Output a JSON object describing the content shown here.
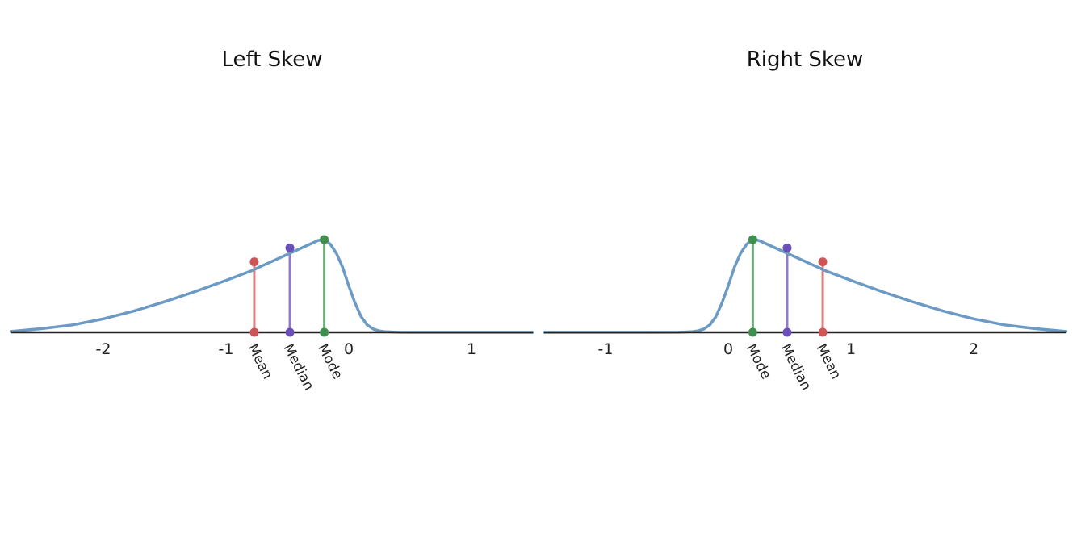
{
  "chart_data": [
    {
      "type": "line",
      "title": "Left Skew",
      "xlabel": "",
      "ylabel": "",
      "xlim": [
        -2.75,
        1.5
      ],
      "ylim": [
        0,
        1
      ],
      "grid": false,
      "x_ticks": [
        -2,
        -1,
        0,
        1
      ],
      "x_tick_labels": [
        "-2",
        "-1",
        "0",
        "1"
      ],
      "curve": {
        "x": [
          -2.75,
          -2.5,
          -2.25,
          -2.0,
          -1.75,
          -1.5,
          -1.25,
          -1.0,
          -0.9,
          -0.8,
          -0.7,
          -0.6,
          -0.5,
          -0.4,
          -0.3,
          -0.25,
          -0.2,
          -0.15,
          -0.1,
          -0.05,
          0.0,
          0.05,
          0.1,
          0.15,
          0.2,
          0.25,
          0.3,
          0.4,
          0.6,
          0.8,
          1.0,
          1.25,
          1.5
        ],
        "y": [
          0.01,
          0.04,
          0.08,
          0.145,
          0.23,
          0.33,
          0.44,
          0.56,
          0.61,
          0.66,
          0.72,
          0.78,
          0.84,
          0.9,
          0.96,
          0.99,
          1.0,
          0.95,
          0.85,
          0.7,
          0.5,
          0.32,
          0.17,
          0.08,
          0.035,
          0.015,
          0.006,
          0.001,
          0,
          0,
          0,
          0,
          0
        ]
      },
      "markers": [
        {
          "label": "Mean",
          "x": -0.77,
          "y": 0.76,
          "color": "#cc5555"
        },
        {
          "label": "Median",
          "x": -0.48,
          "y": 0.91,
          "color": "#6a4fb8"
        },
        {
          "label": "Mode",
          "x": -0.2,
          "y": 1.0,
          "color": "#3f8f4f"
        }
      ]
    },
    {
      "type": "line",
      "title": "Right Skew",
      "xlabel": "",
      "ylabel": "",
      "xlim": [
        -1.5,
        2.75
      ],
      "ylim": [
        0,
        1
      ],
      "grid": false,
      "x_ticks": [
        -1,
        0,
        1,
        2
      ],
      "x_tick_labels": [
        "-1",
        "0",
        "1",
        "2"
      ],
      "curve": {
        "x": [
          -1.5,
          -1.25,
          -1.0,
          -0.8,
          -0.6,
          -0.4,
          -0.3,
          -0.25,
          -0.2,
          -0.15,
          -0.1,
          -0.05,
          0.0,
          0.05,
          0.1,
          0.15,
          0.2,
          0.25,
          0.3,
          0.4,
          0.5,
          0.6,
          0.7,
          0.8,
          0.9,
          1.0,
          1.25,
          1.5,
          1.75,
          2.0,
          2.25,
          2.5,
          2.75
        ],
        "y": [
          0,
          0,
          0,
          0,
          0,
          0.001,
          0.006,
          0.015,
          0.035,
          0.08,
          0.17,
          0.32,
          0.5,
          0.7,
          0.85,
          0.95,
          1.0,
          0.99,
          0.96,
          0.9,
          0.84,
          0.78,
          0.72,
          0.66,
          0.61,
          0.56,
          0.44,
          0.33,
          0.23,
          0.145,
          0.08,
          0.04,
          0.01
        ]
      },
      "markers": [
        {
          "label": "Mode",
          "x": 0.2,
          "y": 1.0,
          "color": "#3f8f4f"
        },
        {
          "label": "Median",
          "x": 0.48,
          "y": 0.91,
          "color": "#6a4fb8"
        },
        {
          "label": "Mean",
          "x": 0.77,
          "y": 0.76,
          "color": "#cc5555"
        }
      ]
    }
  ],
  "colors": {
    "curve": "#6b9ac4",
    "axis": "#222222"
  }
}
